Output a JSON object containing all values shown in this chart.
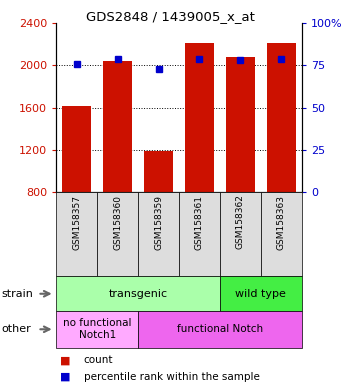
{
  "title": "GDS2848 / 1439005_x_at",
  "samples": [
    "GSM158357",
    "GSM158360",
    "GSM158359",
    "GSM158361",
    "GSM158362",
    "GSM158363"
  ],
  "counts": [
    1610,
    2040,
    1185,
    2210,
    2080,
    2210
  ],
  "percentiles": [
    76,
    79,
    73,
    79,
    78,
    79
  ],
  "ylim_left": [
    800,
    2400
  ],
  "ylim_right": [
    0,
    100
  ],
  "yticks_left": [
    800,
    1200,
    1600,
    2000,
    2400
  ],
  "yticks_right": [
    0,
    25,
    50,
    75,
    100
  ],
  "bar_color": "#cc1100",
  "dot_color": "#0000cc",
  "strain_labels": [
    {
      "text": "transgenic",
      "span": [
        0,
        3
      ],
      "color": "#aaffaa"
    },
    {
      "text": "wild type",
      "span": [
        4,
        5
      ],
      "color": "#44ee44"
    }
  ],
  "other_labels": [
    {
      "text": "no functional\nNotch1",
      "span": [
        0,
        1
      ],
      "color": "#ffaaff"
    },
    {
      "text": "functional Notch",
      "span": [
        2,
        5
      ],
      "color": "#ee66ee"
    }
  ],
  "legend_items": [
    {
      "label": "count",
      "color": "#cc1100"
    },
    {
      "label": "percentile rank within the sample",
      "color": "#0000cc"
    }
  ],
  "bar_width": 0.7
}
